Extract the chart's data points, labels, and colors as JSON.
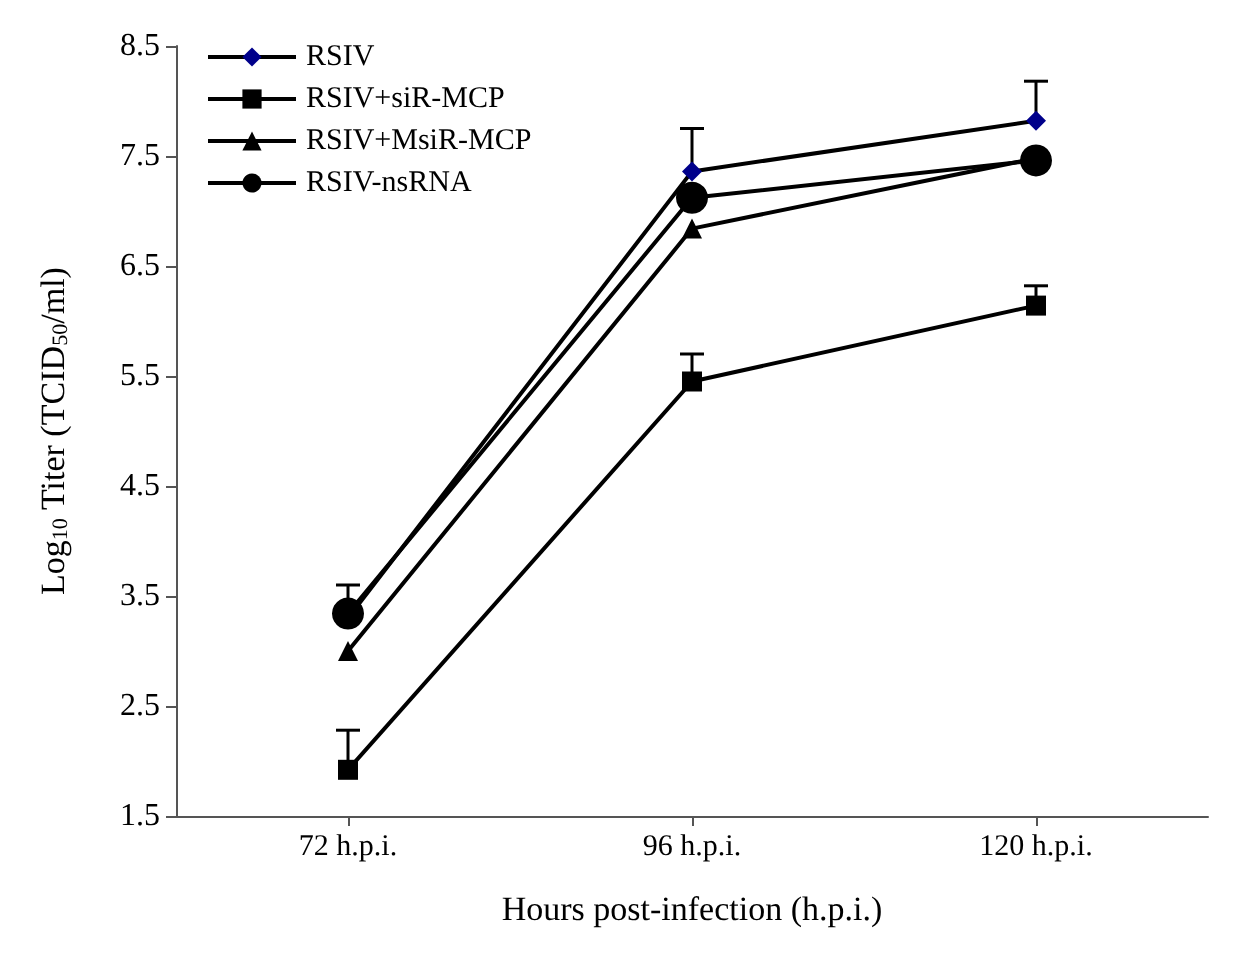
{
  "chart_data": {
    "type": "line",
    "xlabel": "Hours post-infection (h.p.i.)",
    "ylabel": "Log$_{10}$ Titer (TCID$_{50}$/ml)",
    "categories": [
      "72 h.p.i.",
      "96 h.p.i.",
      "120 h.p.i."
    ],
    "series": [
      {
        "name": "RSIV",
        "color": "#00008b",
        "marker": "diamond",
        "values": [
          3.3,
          7.36,
          7.82
        ],
        "errors": [
          [
            3.3,
            3.6
          ],
          [
            7.36,
            7.75
          ],
          [
            7.82,
            8.18
          ]
        ]
      },
      {
        "name": "RSIV+siR-MCP",
        "color": "#000000",
        "marker": "square",
        "values": [
          1.92,
          5.45,
          6.14
        ],
        "errors": [
          [
            1.92,
            2.28
          ],
          [
            5.45,
            5.7
          ],
          [
            6.14,
            6.32
          ]
        ]
      },
      {
        "name": "RSIV+MsiR-MCP",
        "color": "#000000",
        "marker": "triangle",
        "values": [
          3.0,
          6.84,
          7.48
        ]
      },
      {
        "name": "RSIV-nsRNA",
        "color": "#000000",
        "marker": "circle",
        "values": [
          3.34,
          7.12,
          7.46
        ]
      }
    ],
    "ylim": [
      1.5,
      8.5
    ],
    "yticks": [
      1.5,
      2.5,
      3.5,
      4.5,
      5.5,
      6.5,
      7.5,
      8.5
    ],
    "grid": false,
    "legend": "top left",
    "line_style": "solid"
  }
}
